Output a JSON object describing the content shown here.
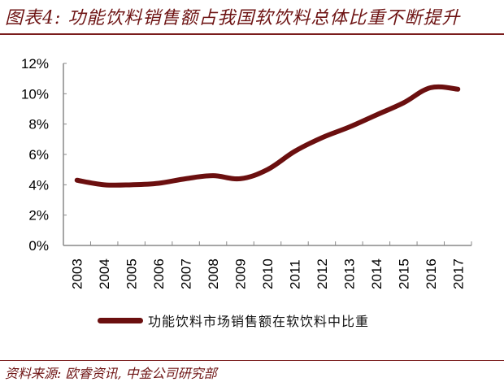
{
  "header": {
    "title": "图表4: 功能饮料销售额占我国软饮料总体比重不断提升"
  },
  "footer": {
    "source": "资料来源: 欧睿资讯, 中金公司研究部"
  },
  "colors": {
    "series": "#6b0f0f",
    "title": "#6e1414",
    "rule": "#7a1c1c",
    "axis": "#888888"
  },
  "chart_data": {
    "type": "line",
    "title": "功能饮料销售额占我国软饮料总体比重不断提升",
    "xlabel": "",
    "ylabel": "",
    "categories": [
      "2003",
      "2004",
      "2005",
      "2006",
      "2007",
      "2008",
      "2009",
      "2010",
      "2011",
      "2012",
      "2013",
      "2014",
      "2015",
      "2016",
      "2017"
    ],
    "series": [
      {
        "name": "功能饮料市场销售额在软饮料中比重",
        "values": [
          4.3,
          4.0,
          4.0,
          4.1,
          4.4,
          4.6,
          4.4,
          5.0,
          6.2,
          7.1,
          7.8,
          8.6,
          9.4,
          10.4,
          10.3
        ]
      }
    ],
    "ylim": [
      0,
      12
    ],
    "yticks": [
      "0%",
      "2%",
      "4%",
      "6%",
      "8%",
      "10%",
      "12%"
    ],
    "ytick_values": [
      0,
      2,
      4,
      6,
      8,
      10,
      12
    ],
    "grid": false,
    "legend_position": "bottom",
    "smooth": true
  }
}
